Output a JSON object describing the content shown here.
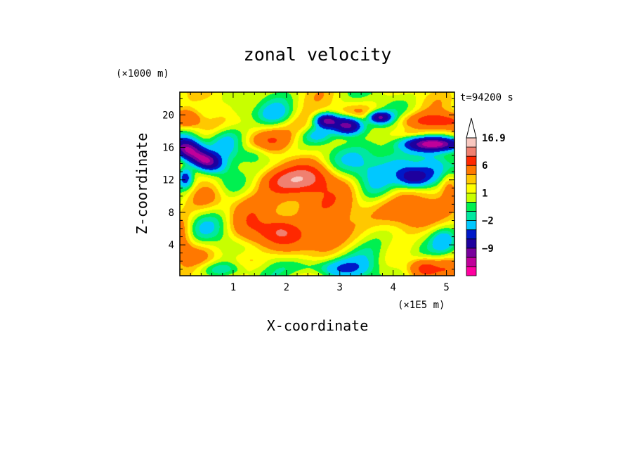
{
  "chart_data": {
    "type": "heatmap",
    "title": "zonal velocity",
    "xlabel": "X-coordinate",
    "ylabel": "Z-coordinate",
    "x_unit": "(×1E5 m)",
    "y_unit": "(×1000 m)",
    "time_label": "t=94200 s",
    "xlim": [
      0,
      5.15
    ],
    "ylim": [
      0.2,
      22.8
    ],
    "xticks": [
      1,
      2,
      3,
      4,
      5
    ],
    "yticks": [
      4,
      8,
      12,
      16,
      20
    ],
    "colorbar": {
      "levels": [
        -13,
        -11,
        -9,
        -6,
        -4,
        -2,
        -1,
        0,
        1,
        2,
        3,
        6,
        9,
        12,
        16.9
      ],
      "colors": [
        "#ff00a0",
        "#c0009a",
        "#78009c",
        "#1e009e",
        "#0018c8",
        "#00c8ff",
        "#00e8a0",
        "#00f050",
        "#c8ff00",
        "#ffff00",
        "#ffc800",
        "#ff7800",
        "#ff2800",
        "#f08070",
        "#f8c8c0"
      ],
      "labels": [
        {
          "value": -9,
          "text": "−9"
        },
        {
          "value": -2,
          "text": "−2"
        },
        {
          "value": 1,
          "text": "1"
        },
        {
          "value": 6,
          "text": "6"
        },
        {
          "value": 16.9,
          "text": "16.9"
        }
      ]
    },
    "features": [
      {
        "x": 0.15,
        "z": 15.7,
        "amp": -13,
        "sx": 0.2,
        "sz": 1.0,
        "tilt": -0.55
      },
      {
        "x": 0.5,
        "z": 14.3,
        "amp": -10,
        "sx": 0.18,
        "sz": 0.8,
        "tilt": -0.6
      },
      {
        "x": 0.1,
        "z": 12.3,
        "amp": -7,
        "sx": 0.1,
        "sz": 0.9,
        "tilt": 0
      },
      {
        "x": 0.12,
        "z": 19.5,
        "amp": 6,
        "sx": 0.2,
        "sz": 0.8,
        "tilt": 0
      },
      {
        "x": 0.5,
        "z": 18.5,
        "amp": 2,
        "sx": 0.25,
        "sz": 1.0,
        "tilt": 0
      },
      {
        "x": 0.85,
        "z": 17.0,
        "amp": -3,
        "sx": 0.22,
        "sz": 1.4,
        "tilt": 0.4
      },
      {
        "x": 1.1,
        "z": 20.5,
        "amp": -2,
        "sx": 0.2,
        "sz": 1.0,
        "tilt": 0
      },
      {
        "x": 0.35,
        "z": 9.5,
        "amp": 2,
        "sx": 0.3,
        "sz": 1.5,
        "tilt": 0
      },
      {
        "x": 0.9,
        "z": 11.5,
        "amp": -3,
        "sx": 0.22,
        "sz": 1.3,
        "tilt": 0
      },
      {
        "x": 0.05,
        "z": 5.5,
        "amp": 3,
        "sx": 0.15,
        "sz": 2.0,
        "tilt": 0
      },
      {
        "x": 0.3,
        "z": 3.0,
        "amp": 2,
        "sx": 0.3,
        "sz": 1.3,
        "tilt": 0
      },
      {
        "x": 0.6,
        "z": 6.0,
        "amp": -2,
        "sx": 0.35,
        "sz": 1.8,
        "tilt": 0
      },
      {
        "x": 0.75,
        "z": 1.0,
        "amp": -3,
        "sx": 0.4,
        "sz": 0.7,
        "tilt": 0
      },
      {
        "x": 1.3,
        "z": 7.0,
        "amp": 2,
        "sx": 0.3,
        "sz": 2.0,
        "tilt": 0
      },
      {
        "x": 1.2,
        "z": 2.0,
        "amp": 3,
        "sx": 0.3,
        "sz": 1.2,
        "tilt": 0
      },
      {
        "x": 1.45,
        "z": 15.5,
        "amp": -3,
        "sx": 0.2,
        "sz": 1.0,
        "tilt": 0.4
      },
      {
        "x": 1.7,
        "z": 16.7,
        "amp": 4,
        "sx": 0.3,
        "sz": 0.9,
        "tilt": 0.5
      },
      {
        "x": 1.95,
        "z": 11.8,
        "amp": 7,
        "sx": 0.35,
        "sz": 1.1,
        "tilt": 0
      },
      {
        "x": 2.45,
        "z": 12.3,
        "amp": 6,
        "sx": 0.3,
        "sz": 1.2,
        "tilt": 0
      },
      {
        "x": 1.55,
        "z": 9.5,
        "amp": 2,
        "sx": 0.35,
        "sz": 1.5,
        "tilt": 0
      },
      {
        "x": 1.55,
        "z": 5.5,
        "amp": 3,
        "sx": 0.3,
        "sz": 1.3,
        "tilt": 0
      },
      {
        "x": 1.9,
        "z": 5.8,
        "amp": 4,
        "sx": 0.2,
        "sz": 1.0,
        "tilt": 0
      },
      {
        "x": 2.2,
        "z": 4.8,
        "amp": 3,
        "sx": 0.35,
        "sz": 1.3,
        "tilt": 0
      },
      {
        "x": 1.65,
        "z": 3.0,
        "amp": -2,
        "sx": 0.3,
        "sz": 1.3,
        "tilt": 0
      },
      {
        "x": 1.8,
        "z": 20.0,
        "amp": -3,
        "sx": 0.25,
        "sz": 1.0,
        "tilt": 0
      },
      {
        "x": 2.3,
        "z": 18.8,
        "amp": 3,
        "sx": 0.25,
        "sz": 1.2,
        "tilt": 0.3
      },
      {
        "x": 2.1,
        "z": 8.7,
        "amp": 2,
        "sx": 0.3,
        "sz": 1.5,
        "tilt": 0
      },
      {
        "x": 2.7,
        "z": 8.0,
        "amp": 3,
        "sx": 0.35,
        "sz": 2.0,
        "tilt": 0
      },
      {
        "x": 2.75,
        "z": 4.5,
        "amp": 3,
        "sx": 0.35,
        "sz": 1.5,
        "tilt": 0
      },
      {
        "x": 2.6,
        "z": 1.2,
        "amp": -3,
        "sx": 0.5,
        "sz": 0.8,
        "tilt": 0
      },
      {
        "x": 2.6,
        "z": 17.5,
        "amp": -3,
        "sx": 0.2,
        "sz": 0.7,
        "tilt": 0
      },
      {
        "x": 2.75,
        "z": 19.3,
        "amp": -10,
        "sx": 0.15,
        "sz": 0.6,
        "tilt": 0
      },
      {
        "x": 3.15,
        "z": 18.7,
        "amp": -13,
        "sx": 0.2,
        "sz": 0.8,
        "tilt": 0
      },
      {
        "x": 3.3,
        "z": 20.2,
        "amp": 2,
        "sx": 0.3,
        "sz": 0.8,
        "tilt": 0
      },
      {
        "x": 3.75,
        "z": 19.7,
        "amp": -10,
        "sx": 0.15,
        "sz": 0.5,
        "tilt": 0
      },
      {
        "x": 3.35,
        "z": 14.0,
        "amp": -2,
        "sx": 0.3,
        "sz": 1.5,
        "tilt": 0
      },
      {
        "x": 3.2,
        "z": 10.5,
        "amp": 2,
        "sx": 0.3,
        "sz": 1.8,
        "tilt": 0
      },
      {
        "x": 3.6,
        "z": 6.0,
        "amp": -2,
        "sx": 0.3,
        "sz": 2.5,
        "tilt": 0
      },
      {
        "x": 3.1,
        "z": 1.0,
        "amp": -2,
        "sx": 0.3,
        "sz": 0.8,
        "tilt": 0
      },
      {
        "x": 3.5,
        "z": 2.0,
        "amp": -1,
        "sx": 0.4,
        "sz": 1.5,
        "tilt": 0
      },
      {
        "x": 3.8,
        "z": 15.5,
        "amp": -2,
        "sx": 0.3,
        "sz": 1.3,
        "tilt": 0
      },
      {
        "x": 3.7,
        "z": 12.0,
        "amp": -2,
        "sx": 0.35,
        "sz": 1.8,
        "tilt": 0
      },
      {
        "x": 4.05,
        "z": 8.0,
        "amp": 4,
        "sx": 0.4,
        "sz": 1.7,
        "tilt": 0
      },
      {
        "x": 4.45,
        "z": 8.0,
        "amp": 3,
        "sx": 0.3,
        "sz": 1.5,
        "tilt": 0
      },
      {
        "x": 4.1,
        "z": 14.0,
        "amp": -2,
        "sx": 0.3,
        "sz": 1.3,
        "tilt": 0
      },
      {
        "x": 4.4,
        "z": 12.3,
        "amp": -10,
        "sx": 0.22,
        "sz": 0.9,
        "tilt": 0
      },
      {
        "x": 4.75,
        "z": 13.5,
        "amp": -4,
        "sx": 0.2,
        "sz": 1.2,
        "tilt": 0
      },
      {
        "x": 4.8,
        "z": 16.4,
        "amp": -12,
        "sx": 0.4,
        "sz": 0.6,
        "tilt": 0.1
      },
      {
        "x": 4.8,
        "z": 19.2,
        "amp": 7,
        "sx": 0.4,
        "sz": 0.7,
        "tilt": 0
      },
      {
        "x": 4.55,
        "z": 17.7,
        "amp": 2,
        "sx": 0.3,
        "sz": 0.4,
        "tilt": 0
      },
      {
        "x": 5.05,
        "z": 11.5,
        "amp": 3,
        "sx": 0.12,
        "sz": 1.2,
        "tilt": 0
      },
      {
        "x": 4.3,
        "z": 3.0,
        "amp": -1,
        "sx": 0.3,
        "sz": 1.5,
        "tilt": 0
      },
      {
        "x": 4.6,
        "z": 1.2,
        "amp": 6,
        "sx": 0.2,
        "sz": 0.8,
        "tilt": 0
      },
      {
        "x": 5.05,
        "z": 1.0,
        "amp": 4,
        "sx": 0.15,
        "sz": 1.0,
        "tilt": 0
      },
      {
        "x": 4.95,
        "z": 4.5,
        "amp": -3,
        "sx": 0.15,
        "sz": 1.0,
        "tilt": 0
      }
    ]
  }
}
